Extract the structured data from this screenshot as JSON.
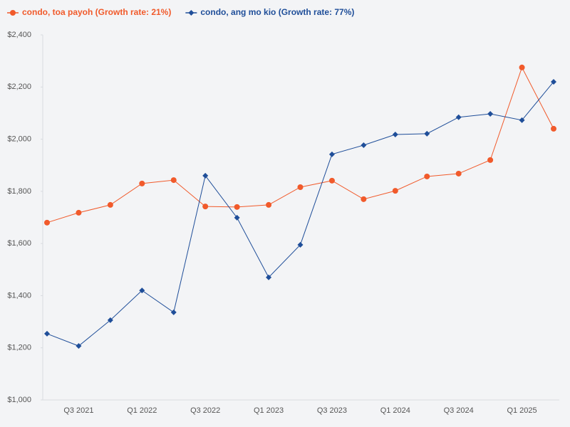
{
  "chart_data": {
    "type": "line",
    "categories": [
      null,
      "Q3 2021",
      null,
      "Q1 2022",
      null,
      "Q3 2022",
      null,
      "Q1 2023",
      null,
      "Q3 2023",
      null,
      "Q1 2024",
      null,
      "Q3 2024",
      null,
      "Q1 2025",
      null
    ],
    "series": [
      {
        "name": "condo, toa payoh (Growth rate: 21%)",
        "color": "#f15a2b",
        "marker": "circle",
        "values": [
          1680,
          1718,
          1748,
          1830,
          1843,
          1742,
          1740,
          1748,
          1816,
          1841,
          1770,
          1802,
          1857,
          1868,
          1920,
          2275,
          2040
        ]
      },
      {
        "name": "condo, ang mo kio (Growth rate: 77%)",
        "color": "#1f4e99",
        "marker": "diamond",
        "values": [
          1254,
          1207,
          1306,
          1420,
          1336,
          1860,
          1699,
          1470,
          1595,
          1942,
          1977,
          2018,
          2021,
          2084,
          2097,
          2073,
          2220
        ]
      }
    ],
    "ylim": [
      1000,
      2400
    ],
    "yticks": [
      {
        "value": 1000,
        "label": "$1,000"
      },
      {
        "value": 1200,
        "label": "$1,200"
      },
      {
        "value": 1400,
        "label": "$1,400"
      },
      {
        "value": 1600,
        "label": "$1,600"
      },
      {
        "value": 1800,
        "label": "$1,800"
      },
      {
        "value": 2000,
        "label": "$2,000"
      },
      {
        "value": 2200,
        "label": "$2,200"
      },
      {
        "value": 2400,
        "label": "$2,400"
      }
    ],
    "legend": "top-left",
    "grid": false
  }
}
